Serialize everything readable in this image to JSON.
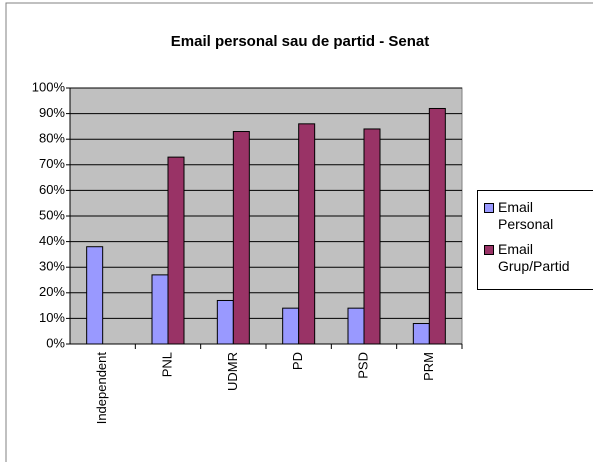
{
  "chart_data": {
    "type": "bar",
    "title": "Email personal sau de partid - Senat",
    "categories": [
      "Independent",
      "PNL",
      "UDMR",
      "PD",
      "PSD",
      "PRM"
    ],
    "series": [
      {
        "name": "Email Personal",
        "color": "#9999ff",
        "values": [
          38,
          27,
          17,
          14,
          14,
          8
        ]
      },
      {
        "name": "Email Grup/Partid",
        "color": "#993366",
        "values": [
          0,
          73,
          83,
          86,
          84,
          92
        ]
      }
    ],
    "ylim": [
      0,
      100
    ],
    "yticks": [
      {
        "value": 0,
        "label": "0%"
      },
      {
        "value": 10,
        "label": "10%"
      },
      {
        "value": 20,
        "label": "20%"
      },
      {
        "value": 30,
        "label": "30%"
      },
      {
        "value": 40,
        "label": "40%"
      },
      {
        "value": 50,
        "label": "50%"
      },
      {
        "value": 60,
        "label": "60%"
      },
      {
        "value": 70,
        "label": "70%"
      },
      {
        "value": 80,
        "label": "80%"
      },
      {
        "value": 90,
        "label": "90%"
      },
      {
        "value": 100,
        "label": "100%"
      }
    ],
    "grid": true,
    "legend": "right"
  }
}
